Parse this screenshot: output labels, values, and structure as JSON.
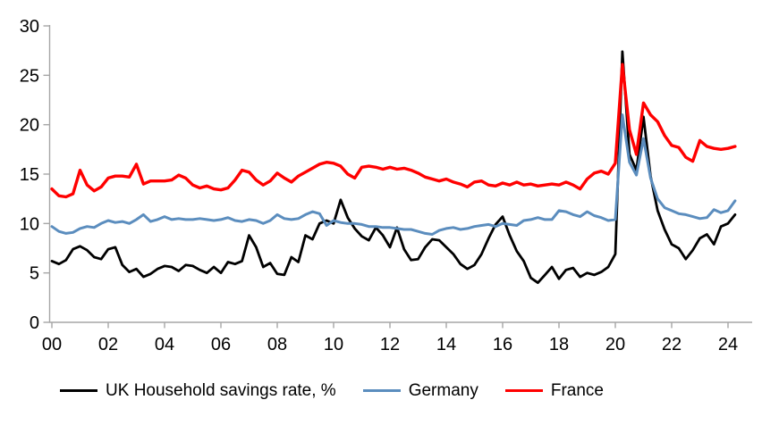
{
  "chart_data": {
    "type": "line",
    "title": "",
    "frequency": "quarterly",
    "x_start": 2000,
    "x_step_years": 0.25,
    "n_points": 98,
    "grid": false,
    "legend_position": "bottom",
    "background_color": "#FFFFFF",
    "axis_color": "#A6A6A6",
    "tick_label_color": "#000000",
    "x_axis": {
      "ticks": [
        2000,
        2002,
        2004,
        2006,
        2008,
        2010,
        2012,
        2014,
        2016,
        2018,
        2020,
        2022,
        2024
      ],
      "tick_labels": [
        "00",
        "02",
        "04",
        "06",
        "08",
        "10",
        "12",
        "14",
        "16",
        "18",
        "20",
        "22",
        "24"
      ],
      "range": [
        2000,
        2024.5
      ]
    },
    "y_axis": {
      "ticks": [
        0,
        5,
        10,
        15,
        20,
        25,
        30
      ],
      "tick_labels": [
        "0",
        "5",
        "10",
        "15",
        "20",
        "25",
        "30"
      ],
      "range": [
        0,
        30
      ]
    },
    "series": [
      {
        "name": "UK Household savings rate, %",
        "color": "#000000",
        "values": [
          6.2,
          5.9,
          6.3,
          7.4,
          7.7,
          7.3,
          6.6,
          6.4,
          7.4,
          7.6,
          5.8,
          5.1,
          5.4,
          4.6,
          4.9,
          5.4,
          5.7,
          5.6,
          5.2,
          5.8,
          5.7,
          5.3,
          5.0,
          5.6,
          5.0,
          6.1,
          5.9,
          6.2,
          8.8,
          7.6,
          5.6,
          6.0,
          4.9,
          4.8,
          6.6,
          6.1,
          8.8,
          8.4,
          10.0,
          10.3,
          10.0,
          12.4,
          10.6,
          9.5,
          8.7,
          8.3,
          9.6,
          8.8,
          7.6,
          9.6,
          7.4,
          6.3,
          6.4,
          7.6,
          8.4,
          8.3,
          7.6,
          6.9,
          5.9,
          5.4,
          5.8,
          6.9,
          8.5,
          9.9,
          10.7,
          8.8,
          7.2,
          6.2,
          4.5,
          4.0,
          4.8,
          5.6,
          4.4,
          5.3,
          5.5,
          4.6,
          5.0,
          4.8,
          5.1,
          5.6,
          6.9,
          27.4,
          17.0,
          15.4,
          20.8,
          14.8,
          11.3,
          9.4,
          7.9,
          7.5,
          6.4,
          7.3,
          8.5,
          8.9,
          7.9,
          9.7,
          10.0,
          10.9
        ]
      },
      {
        "name": "Germany",
        "color": "#5B8DBE",
        "values": [
          9.7,
          9.2,
          9.0,
          9.1,
          9.5,
          9.7,
          9.6,
          10.0,
          10.3,
          10.1,
          10.2,
          10.0,
          10.4,
          10.9,
          10.2,
          10.4,
          10.7,
          10.4,
          10.5,
          10.4,
          10.4,
          10.5,
          10.4,
          10.3,
          10.4,
          10.6,
          10.3,
          10.2,
          10.4,
          10.3,
          10.0,
          10.3,
          10.9,
          10.5,
          10.4,
          10.5,
          10.9,
          11.2,
          11.0,
          9.8,
          10.3,
          10.1,
          10.0,
          10.0,
          9.9,
          9.7,
          9.7,
          9.6,
          9.6,
          9.5,
          9.4,
          9.4,
          9.2,
          9.0,
          8.9,
          9.3,
          9.5,
          9.6,
          9.4,
          9.5,
          9.7,
          9.8,
          9.9,
          9.7,
          10.0,
          9.9,
          9.8,
          10.3,
          10.4,
          10.6,
          10.4,
          10.4,
          11.3,
          11.2,
          10.9,
          10.7,
          11.2,
          10.8,
          10.6,
          10.3,
          10.4,
          21.0,
          16.2,
          14.9,
          18.6,
          14.6,
          12.5,
          11.6,
          11.3,
          11.0,
          10.9,
          10.7,
          10.5,
          10.6,
          11.4,
          11.1,
          11.3,
          12.3
        ]
      },
      {
        "name": "France",
        "color": "#FF0000",
        "values": [
          13.5,
          12.8,
          12.7,
          13.0,
          15.4,
          13.9,
          13.3,
          13.7,
          14.6,
          14.8,
          14.8,
          14.7,
          16.0,
          14.0,
          14.3,
          14.3,
          14.3,
          14.4,
          14.9,
          14.6,
          13.9,
          13.6,
          13.8,
          13.5,
          13.4,
          13.6,
          14.4,
          15.4,
          15.2,
          14.4,
          13.9,
          14.3,
          15.1,
          14.6,
          14.2,
          14.8,
          15.2,
          15.6,
          16.0,
          16.2,
          16.1,
          15.8,
          15.0,
          14.6,
          15.7,
          15.8,
          15.7,
          15.5,
          15.7,
          15.5,
          15.6,
          15.4,
          15.1,
          14.7,
          14.5,
          14.3,
          14.5,
          14.2,
          14.0,
          13.7,
          14.2,
          14.3,
          13.9,
          13.8,
          14.1,
          13.9,
          14.2,
          13.9,
          14.0,
          13.8,
          13.9,
          14.0,
          13.9,
          14.2,
          13.9,
          13.5,
          14.5,
          15.1,
          15.3,
          15.0,
          16.1,
          26.1,
          19.5,
          17.0,
          22.2,
          21.0,
          20.3,
          18.9,
          17.9,
          17.7,
          16.7,
          16.3,
          18.4,
          17.8,
          17.6,
          17.5,
          17.6,
          17.8
        ]
      }
    ]
  }
}
